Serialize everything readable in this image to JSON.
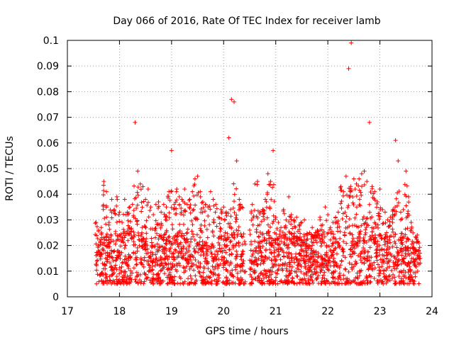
{
  "chart_data": {
    "type": "scatter",
    "title": "Day 066 of 2016, Rate Of TEC Index for receiver lamb",
    "xlabel": "GPS time / hours",
    "ylabel": "ROTI / TECUs",
    "xlim": [
      17,
      24
    ],
    "ylim": [
      0,
      0.1
    ],
    "xticks": [
      "17",
      "18",
      "19",
      "20",
      "21",
      "22",
      "23",
      "24"
    ],
    "yticks": [
      "0",
      "0.01",
      "0.02",
      "0.03",
      "0.04",
      "0.05",
      "0.06",
      "0.07",
      "0.08",
      "0.09",
      "0.1"
    ],
    "grid": true,
    "marker": "plus",
    "color": "#ff0000",
    "data_gap": [
      20.42,
      20.5
    ],
    "series": [
      {
        "name": "ROTI",
        "x": [
          17.55,
          17.6,
          17.65,
          17.7,
          17.75,
          17.8,
          17.85,
          17.9,
          17.95,
          18.0,
          18.05,
          18.1,
          18.15,
          18.2,
          18.25,
          18.3,
          18.35,
          18.4,
          18.45,
          18.5,
          18.55,
          18.6,
          18.65,
          18.7,
          18.75,
          18.8,
          18.85,
          18.9,
          18.95,
          19.0,
          19.05,
          19.1,
          19.15,
          19.2,
          19.25,
          19.3,
          19.35,
          19.4,
          19.45,
          19.5,
          19.55,
          19.6,
          19.65,
          19.7,
          19.75,
          19.8,
          19.85,
          19.9,
          19.95,
          20.0,
          20.05,
          20.1,
          20.15,
          20.2,
          20.25,
          20.3,
          20.35,
          20.5,
          20.55,
          20.6,
          20.65,
          20.7,
          20.75,
          20.8,
          20.85,
          20.9,
          20.95,
          21.0,
          21.05,
          21.1,
          21.15,
          21.2,
          21.25,
          21.3,
          21.35,
          21.4,
          21.45,
          21.5,
          21.55,
          21.6,
          21.65,
          21.7,
          21.75,
          21.8,
          21.85,
          21.9,
          21.95,
          22.0,
          22.05,
          22.1,
          22.15,
          22.2,
          22.25,
          22.3,
          22.35,
          22.4,
          22.45,
          22.5,
          22.55,
          22.6,
          22.65,
          22.7,
          22.75,
          22.8,
          22.85,
          22.9,
          22.95,
          23.0,
          23.05,
          23.1,
          23.15,
          23.2,
          23.25,
          23.3,
          23.35,
          23.4,
          23.45,
          23.5,
          23.55,
          23.6,
          23.65,
          23.7,
          23.75
        ],
        "y": [
          0.029,
          0.026,
          0.027,
          0.045,
          0.041,
          0.029,
          0.038,
          0.034,
          0.039,
          0.033,
          0.029,
          0.038,
          0.033,
          0.035,
          0.036,
          0.068,
          0.049,
          0.044,
          0.043,
          0.038,
          0.042,
          0.035,
          0.032,
          0.036,
          0.037,
          0.033,
          0.036,
          0.035,
          0.041,
          0.057,
          0.036,
          0.042,
          0.039,
          0.038,
          0.042,
          0.036,
          0.038,
          0.041,
          0.046,
          0.047,
          0.041,
          0.037,
          0.036,
          0.035,
          0.041,
          0.038,
          0.036,
          0.031,
          0.034,
          0.035,
          0.033,
          0.062,
          0.077,
          0.076,
          0.053,
          0.038,
          0.035,
          0.026,
          0.036,
          0.044,
          0.045,
          0.033,
          0.034,
          0.038,
          0.048,
          0.045,
          0.057,
          0.031,
          0.029,
          0.027,
          0.034,
          0.03,
          0.039,
          0.032,
          0.03,
          0.031,
          0.028,
          0.029,
          0.03,
          0.024,
          0.025,
          0.027,
          0.024,
          0.026,
          0.031,
          0.028,
          0.035,
          0.032,
          0.027,
          0.029,
          0.031,
          0.033,
          0.043,
          0.041,
          0.047,
          0.089,
          0.099,
          0.046,
          0.044,
          0.046,
          0.048,
          0.049,
          0.045,
          0.068,
          0.043,
          0.041,
          0.037,
          0.042,
          0.034,
          0.033,
          0.03,
          0.031,
          0.034,
          0.061,
          0.053,
          0.033,
          0.034,
          0.049,
          0.039,
          0.029,
          0.021,
          0.023,
          0.021
        ]
      }
    ]
  }
}
